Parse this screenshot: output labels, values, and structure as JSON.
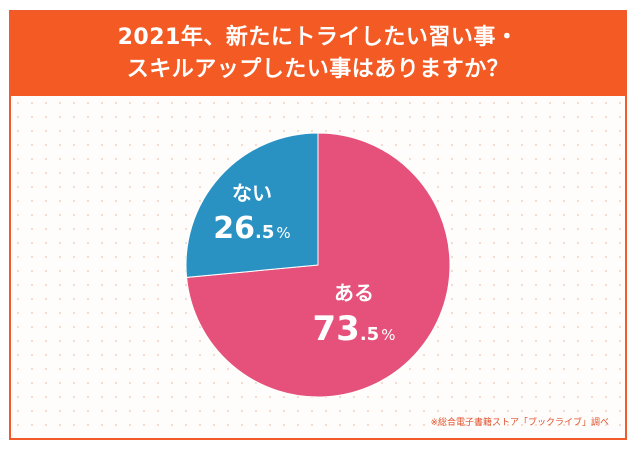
{
  "title": {
    "line1": "2021年、新たにトライしたい習い事・",
    "line2": "スキルアップしたい事はありますか？"
  },
  "footnote": "※総合電子書籍ストア「ブックライブ」調べ",
  "colors": {
    "header": "#f35a24",
    "yes": "#e5517a",
    "no": "#2a92c3",
    "label": "#ffffff"
  },
  "chart_data": {
    "type": "pie",
    "slices": [
      {
        "label": "ある",
        "value": 73.5,
        "int": "73",
        "dec": ".5",
        "unit": "%",
        "color": "#e5517a"
      },
      {
        "label": "ない",
        "value": 26.5,
        "int": "26",
        "dec": ".5",
        "unit": "%",
        "color": "#2a92c3"
      }
    ]
  }
}
